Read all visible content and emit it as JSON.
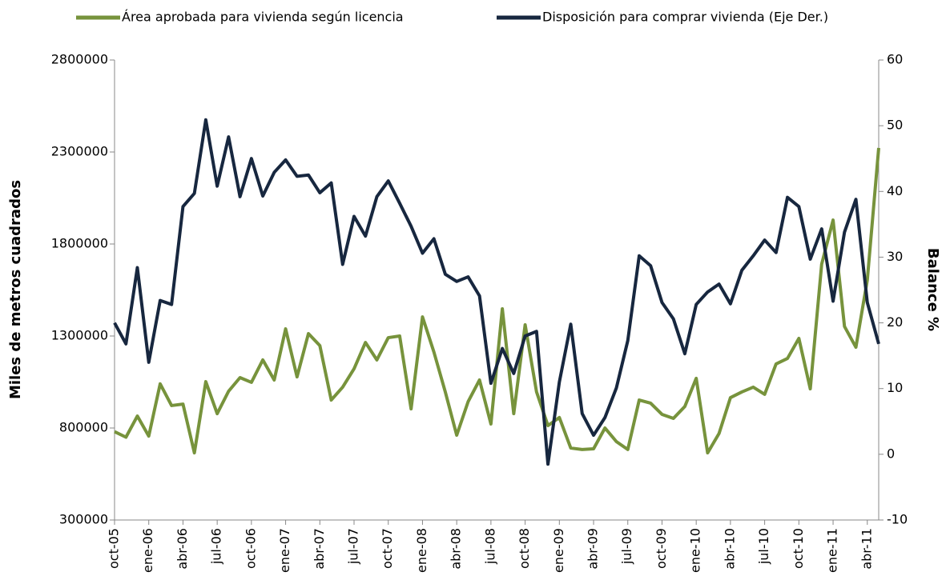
{
  "chart_data": {
    "type": "line",
    "categories": [
      "oct-05",
      null,
      null,
      "ene-06",
      null,
      null,
      "abr-06",
      null,
      null,
      "jul-06",
      null,
      null,
      "oct-06",
      null,
      null,
      "ene-07",
      null,
      null,
      "abr-07",
      null,
      null,
      "jul-07",
      null,
      null,
      "oct-07",
      null,
      null,
      "ene-08",
      null,
      null,
      "abr-08",
      null,
      null,
      "jul-08",
      null,
      null,
      "oct-08",
      null,
      null,
      "ene-09",
      null,
      null,
      "abr-09",
      null,
      null,
      "jul-09",
      null,
      null,
      "oct-09",
      null,
      null,
      "ene-10",
      null,
      null,
      "abr-10",
      null,
      null,
      "jul-10",
      null,
      null,
      "oct-10",
      null,
      null,
      "ene-11",
      null,
      null,
      "abr-11",
      null
    ],
    "series": [
      {
        "name": "Área aprobada para vivienda según licencia",
        "color": "#77933c",
        "values": [
          780000,
          750000,
          865000,
          756000,
          1040000,
          922000,
          930000,
          665000,
          1052000,
          878000,
          1000000,
          1074000,
          1048000,
          1170000,
          1061000,
          1339000,
          1078000,
          1313000,
          1248000,
          952000,
          1022000,
          1122000,
          1265000,
          1170000,
          1291000,
          1300000,
          904000,
          1404000,
          1213000,
          996000,
          761000,
          943000,
          1061000,
          822000,
          1448000,
          878000,
          1361000,
          996000,
          813000,
          857000,
          691000,
          683000,
          687000,
          800000,
          726000,
          683000,
          952000,
          935000,
          874000,
          852000,
          917000,
          1070000,
          665000,
          770000,
          965000,
          996000,
          1022000,
          983000,
          1148000,
          1178000,
          1287000,
          1013000,
          1691000,
          1930000,
          1352000,
          1239000,
          1604000,
          2322000
        ]
      },
      {
        "name": "Disposición para comprar vivienda (Eje Der.)",
        "color": "#17273f",
        "axis": "y2",
        "values": [
          20,
          16.8,
          28.4,
          14,
          23.4,
          22.8,
          37.7,
          39.7,
          50.9,
          40.8,
          48.3,
          39.2,
          45,
          39.3,
          42.9,
          44.8,
          42.3,
          42.5,
          39.8,
          41.3,
          28.9,
          36.2,
          33.2,
          39.2,
          41.6,
          38.2,
          34.7,
          30.6,
          32.8,
          27.4,
          26.3,
          27,
          24.1,
          10.8,
          16.1,
          12.3,
          18,
          18.7,
          -1.5,
          11,
          19.8,
          6.2,
          2.9,
          5.6,
          10.1,
          17.3,
          30.2,
          28.7,
          23.1,
          20.6,
          15.3,
          22.8,
          24.7,
          25.9,
          22.9,
          28,
          30.2,
          32.6,
          30.7,
          39.1,
          37.7,
          29.7,
          34.3,
          23.3,
          33.8,
          38.8,
          23.1,
          16.8
        ]
      }
    ],
    "ylabel": "Miles de metros cuadrados",
    "y2label": "Balance %",
    "ylim": [
      300000,
      2800000
    ],
    "yticks": [
      300000,
      800000,
      1300000,
      1800000,
      2300000,
      2800000
    ],
    "y2lim": [
      -10,
      60
    ],
    "y2ticks": [
      -10,
      0,
      10,
      20,
      30,
      40,
      50,
      60
    ]
  }
}
